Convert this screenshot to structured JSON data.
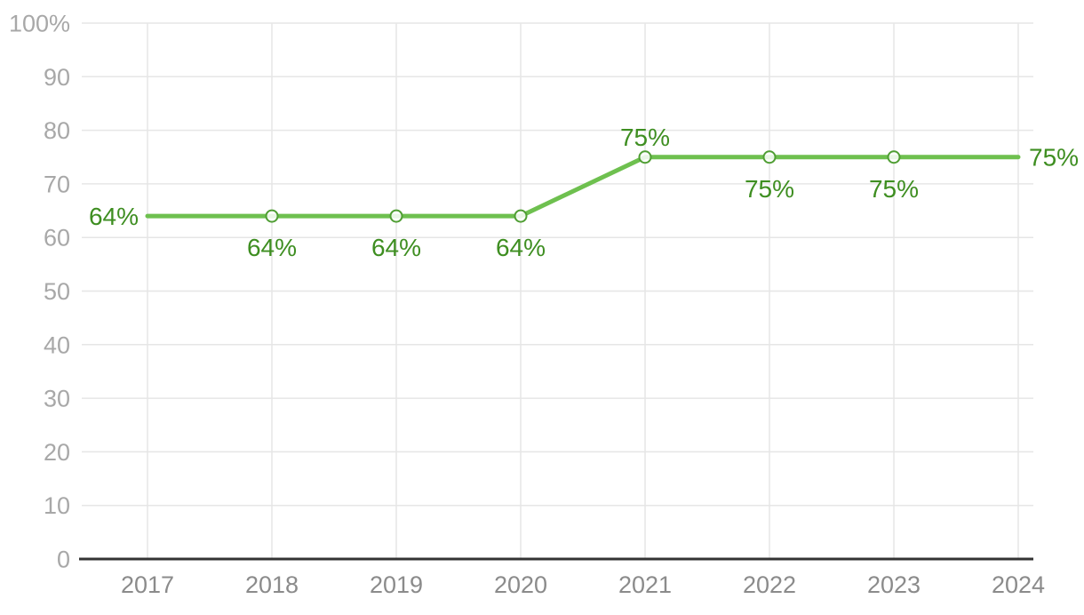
{
  "chart_data": {
    "type": "line",
    "title": "",
    "xlabel": "",
    "ylabel": "",
    "categories": [
      "2017",
      "2018",
      "2019",
      "2020",
      "2021",
      "2022",
      "2023",
      "2024"
    ],
    "series": [
      {
        "values": [
          64,
          64,
          64,
          64,
          75,
          75,
          75,
          75
        ],
        "data_labels": [
          "64%",
          "64%",
          "64%",
          "64%",
          "75%",
          "75%",
          "75%",
          "75%"
        ],
        "label_placements": [
          "left",
          "below",
          "below",
          "below",
          "above",
          "below",
          "below",
          "right"
        ],
        "markers": [
          false,
          true,
          true,
          true,
          true,
          true,
          true,
          false
        ]
      }
    ],
    "ylim": [
      0,
      100
    ],
    "yticks": [
      0,
      10,
      20,
      30,
      40,
      50,
      60,
      70,
      80,
      90,
      100
    ],
    "ytick_labels": [
      "0",
      "10",
      "20",
      "30",
      "40",
      "50",
      "60",
      "70",
      "80",
      "90",
      "100%"
    ],
    "grid": "both",
    "legend_position": "none",
    "colors": {
      "line": "#6ec04f",
      "marker_stroke": "#4f9e33",
      "marker_fill": "#ffffff",
      "data_label": "#3e8e21",
      "y_tick_label": "#a8a8a8",
      "x_tick_label": "#8b8b8b",
      "gridline": "#e6e6e6",
      "axis_line": "#333333",
      "background": "#ffffff"
    }
  }
}
